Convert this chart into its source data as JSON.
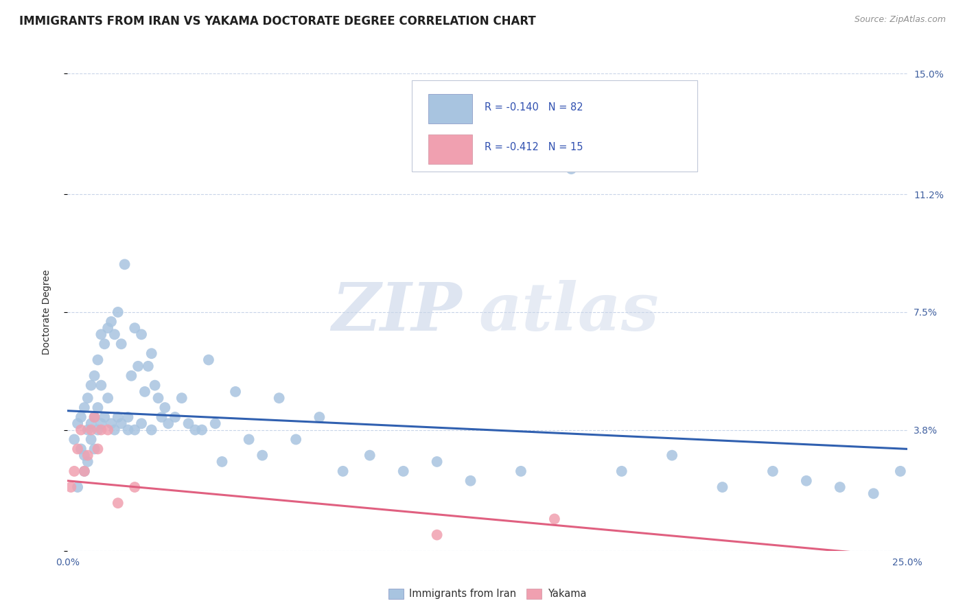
{
  "title": "IMMIGRANTS FROM IRAN VS YAKAMA DOCTORATE DEGREE CORRELATION CHART",
  "source": "Source: ZipAtlas.com",
  "ylabel": "Doctorate Degree",
  "x_min": 0.0,
  "x_max": 0.25,
  "y_min": 0.0,
  "y_max": 0.15,
  "x_ticks": [
    0.0,
    0.05,
    0.1,
    0.15,
    0.2,
    0.25
  ],
  "x_tick_labels": [
    "0.0%",
    "",
    "",
    "",
    "",
    "25.0%"
  ],
  "y_ticks": [
    0.0,
    0.038,
    0.075,
    0.112,
    0.15
  ],
  "y_tick_labels_right": [
    "",
    "3.8%",
    "7.5%",
    "11.2%",
    "15.0%"
  ],
  "iran_color": "#a8c4e0",
  "yakama_color": "#f0a0b0",
  "iran_trend_color": "#3060b0",
  "yakama_trend_color": "#e06080",
  "watermark_zip": "ZIP",
  "watermark_atlas": "atlas",
  "background_color": "#ffffff",
  "grid_color": "#c8d4e8",
  "title_fontsize": 12,
  "iran_scatter_x": [
    0.002,
    0.003,
    0.003,
    0.004,
    0.004,
    0.005,
    0.005,
    0.005,
    0.006,
    0.006,
    0.006,
    0.007,
    0.007,
    0.007,
    0.008,
    0.008,
    0.008,
    0.009,
    0.009,
    0.009,
    0.01,
    0.01,
    0.01,
    0.011,
    0.011,
    0.012,
    0.012,
    0.013,
    0.013,
    0.014,
    0.014,
    0.015,
    0.015,
    0.016,
    0.016,
    0.017,
    0.018,
    0.018,
    0.019,
    0.02,
    0.02,
    0.021,
    0.022,
    0.022,
    0.023,
    0.024,
    0.025,
    0.025,
    0.026,
    0.027,
    0.028,
    0.029,
    0.03,
    0.032,
    0.034,
    0.036,
    0.038,
    0.04,
    0.042,
    0.044,
    0.046,
    0.05,
    0.054,
    0.058,
    0.063,
    0.068,
    0.075,
    0.082,
    0.09,
    0.1,
    0.11,
    0.12,
    0.135,
    0.15,
    0.165,
    0.18,
    0.195,
    0.21,
    0.22,
    0.23,
    0.24,
    0.248
  ],
  "iran_scatter_y": [
    0.035,
    0.02,
    0.04,
    0.042,
    0.032,
    0.045,
    0.03,
    0.025,
    0.048,
    0.038,
    0.028,
    0.052,
    0.04,
    0.035,
    0.055,
    0.042,
    0.032,
    0.06,
    0.045,
    0.038,
    0.068,
    0.052,
    0.04,
    0.065,
    0.042,
    0.07,
    0.048,
    0.072,
    0.04,
    0.068,
    0.038,
    0.075,
    0.042,
    0.065,
    0.04,
    0.09,
    0.038,
    0.042,
    0.055,
    0.07,
    0.038,
    0.058,
    0.068,
    0.04,
    0.05,
    0.058,
    0.062,
    0.038,
    0.052,
    0.048,
    0.042,
    0.045,
    0.04,
    0.042,
    0.048,
    0.04,
    0.038,
    0.038,
    0.06,
    0.04,
    0.028,
    0.05,
    0.035,
    0.03,
    0.048,
    0.035,
    0.042,
    0.025,
    0.03,
    0.025,
    0.028,
    0.022,
    0.025,
    0.12,
    0.025,
    0.03,
    0.02,
    0.025,
    0.022,
    0.02,
    0.018,
    0.025
  ],
  "yakama_scatter_x": [
    0.001,
    0.002,
    0.003,
    0.004,
    0.005,
    0.006,
    0.007,
    0.008,
    0.009,
    0.01,
    0.012,
    0.015,
    0.02,
    0.11,
    0.145
  ],
  "yakama_scatter_y": [
    0.02,
    0.025,
    0.032,
    0.038,
    0.025,
    0.03,
    0.038,
    0.042,
    0.032,
    0.038,
    0.038,
    0.015,
    0.02,
    0.005,
    0.01
  ],
  "iran_trend_y0": 0.044,
  "iran_trend_y1": 0.032,
  "yakama_trend_y0": 0.022,
  "yakama_trend_y1": -0.002
}
